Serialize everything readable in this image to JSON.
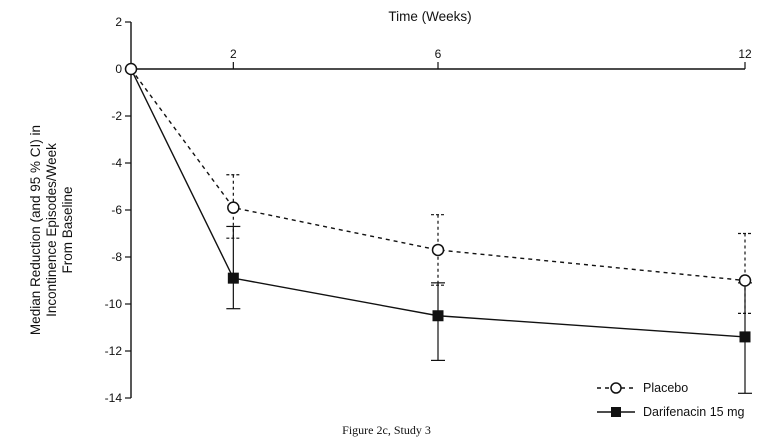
{
  "chart_data": {
    "type": "line",
    "xlabel": "Time (Weeks)",
    "ylabel_lines": [
      "Median Reduction (and 95 % CI) in",
      "Incontinence Episodes/Week",
      "From Baseline"
    ],
    "x_ticks": [
      2,
      6,
      12
    ],
    "y_ticks": [
      2,
      0,
      -2,
      -4,
      -6,
      -8,
      -10,
      -12,
      -14
    ],
    "xlim": [
      0,
      12
    ],
    "ylim": [
      -14,
      2
    ],
    "grid": false,
    "legend_position": "bottom-right",
    "series": [
      {
        "name": "Placebo",
        "style": "dashed",
        "marker": "open-circle",
        "x": [
          0,
          2,
          6,
          12
        ],
        "y": [
          0,
          -5.9,
          -7.7,
          -9.0
        ],
        "ci_low": [
          null,
          -7.2,
          -9.2,
          -10.4
        ],
        "ci_high": [
          null,
          -4.5,
          -6.2,
          -7.0
        ]
      },
      {
        "name": "Darifenacin 15 mg",
        "style": "solid",
        "marker": "filled-square",
        "x": [
          0,
          2,
          6,
          12
        ],
        "y": [
          0,
          -8.9,
          -10.5,
          -11.4
        ],
        "ci_low": [
          null,
          -10.2,
          -12.4,
          -13.8
        ],
        "ci_high": [
          null,
          -6.7,
          -9.1,
          -9.1
        ]
      }
    ]
  },
  "caption": "Figure 2c, Study 3",
  "colors": {
    "ink": "#111111",
    "background": "#ffffff"
  }
}
